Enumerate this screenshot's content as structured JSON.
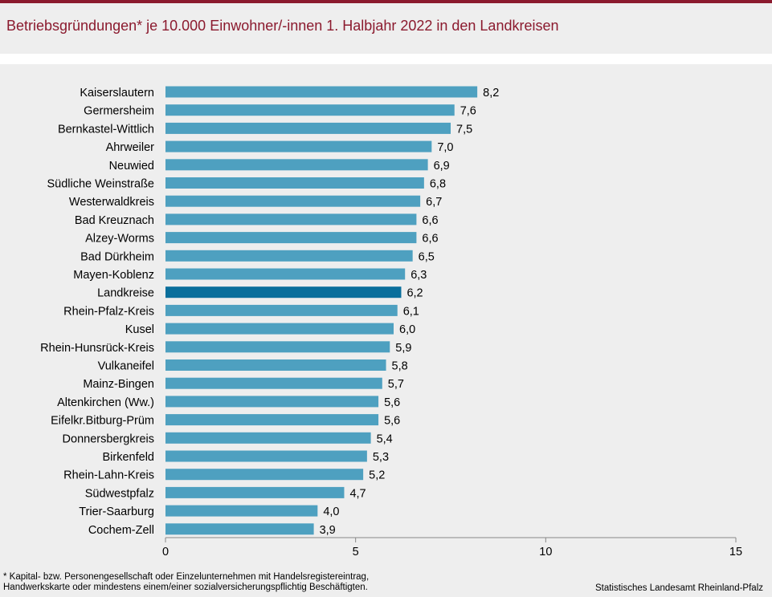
{
  "title": "Betriebsgründungen* je 10.000 Einwohner/-innen 1. Halbjahr 2022  in den Landkreisen",
  "colors": {
    "accent": "#8b1a2e",
    "bar": "#4ea0c0",
    "highlight": "#0a6f9c",
    "background": "#eeeeee"
  },
  "footnote": {
    "line1": "* Kapital- bzw. Personengesellschaft  oder Einzelunternehmen  mit  Handelsregistereintrag,",
    "line2": "Handwerkskarte  oder  mindestens  einem/einer  sozialversicherungspflichtig  Beschäftigten."
  },
  "source": "Statistisches Landesamt Rheinland-Pfalz",
  "chart_data": {
    "type": "bar",
    "orientation": "horizontal",
    "title": "Betriebsgründungen* je 10.000 Einwohner/-innen 1. Halbjahr 2022  in den Landkreisen",
    "xlabel": "",
    "ylabel": "",
    "xlim": [
      0,
      15
    ],
    "xticks": [
      0,
      5,
      10,
      15
    ],
    "grid": false,
    "highlight_category": "Landkreise",
    "categories": [
      "Kaiserslautern",
      "Germersheim",
      "Bernkastel-Wittlich",
      "Ahrweiler",
      "Neuwied",
      "Südliche Weinstraße",
      "Westerwaldkreis",
      "Bad Kreuznach",
      "Alzey-Worms",
      "Bad Dürkheim",
      "Mayen-Koblenz",
      "Landkreise",
      "Rhein-Pfalz-Kreis",
      "Kusel",
      "Rhein-Hunsrück-Kreis",
      "Vulkaneifel",
      "Mainz-Bingen",
      "Altenkirchen (Ww.)",
      "Eifelkr.Bitburg-Prüm",
      "Donnersbergkreis",
      "Birkenfeld",
      "Rhein-Lahn-Kreis",
      "Südwestpfalz",
      "Trier-Saarburg",
      "Cochem-Zell"
    ],
    "values": [
      8.2,
      7.6,
      7.5,
      7.0,
      6.9,
      6.8,
      6.7,
      6.6,
      6.6,
      6.5,
      6.3,
      6.2,
      6.1,
      6.0,
      5.9,
      5.8,
      5.7,
      5.6,
      5.6,
      5.4,
      5.3,
      5.2,
      4.7,
      4.0,
      3.9
    ],
    "value_labels": [
      "8,2",
      "7,6",
      "7,5",
      "7,0",
      "6,9",
      "6,8",
      "6,7",
      "6,6",
      "6,6",
      "6,5",
      "6,3",
      "6,2",
      "6,1",
      "6,0",
      "5,9",
      "5,8",
      "5,7",
      "5,6",
      "5,6",
      "5,4",
      "5,3",
      "5,2",
      "4,7",
      "4,0",
      "3,9"
    ]
  }
}
